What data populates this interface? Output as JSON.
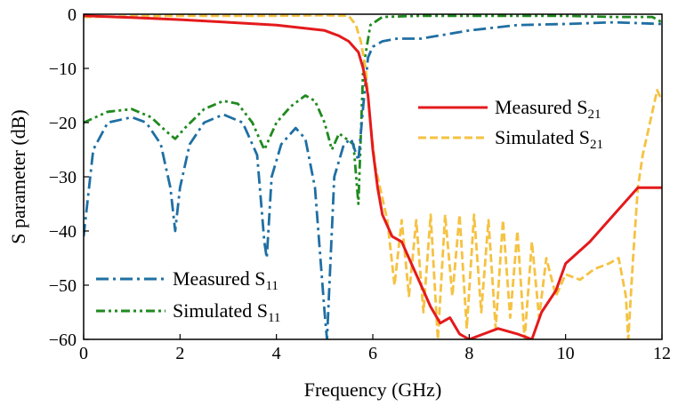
{
  "chart_data": {
    "type": "line",
    "xlabel": "Frequency (GHz)",
    "ylabel": "S parameter (dB)",
    "xlim": [
      0,
      12
    ],
    "ylim": [
      -60,
      0
    ],
    "xticks": [
      "0",
      "2",
      "4",
      "6",
      "8",
      "10",
      "12"
    ],
    "yticks": [
      "0",
      "−10",
      "−20",
      "−30",
      "−40",
      "−50",
      "−60"
    ],
    "grid": false,
    "legends": [
      {
        "placement": "upper-right",
        "entries": [
          "Measured S21",
          "Simulated S21"
        ]
      },
      {
        "placement": "lower-left",
        "entries": [
          "Measured S11",
          "Simulated S11"
        ]
      }
    ],
    "series": [
      {
        "name": "Measured S21",
        "main": "Measured S",
        "sub": "21",
        "color": "#e41a1c",
        "dash": "solid",
        "x": [
          0,
          1,
          2,
          3,
          4,
          4.5,
          5,
          5.3,
          5.5,
          5.7,
          5.8,
          5.9,
          6.0,
          6.1,
          6.2,
          6.4,
          6.6,
          6.8,
          7.0,
          7.2,
          7.4,
          7.6,
          7.8,
          8.0,
          8.3,
          8.6,
          9.0,
          9.3,
          9.5,
          9.8,
          10.0,
          10.5,
          11.0,
          11.5,
          12.0
        ],
        "y": [
          -0.3,
          -0.6,
          -1.0,
          -1.5,
          -2.0,
          -2.5,
          -3.0,
          -4.0,
          -5.0,
          -7.0,
          -10.0,
          -15.0,
          -25.0,
          -32.0,
          -37.0,
          -41.0,
          -42.0,
          -46.0,
          -50.0,
          -54.0,
          -57.0,
          -56.0,
          -59.0,
          -60.0,
          -59.0,
          -58.0,
          -59.0,
          -60.0,
          -55.0,
          -51.0,
          -46.0,
          -42.0,
          -37.0,
          -32.0,
          -32.0
        ]
      },
      {
        "name": "Simulated S21",
        "main": "Simulated S",
        "sub": "21",
        "color": "#f5c242",
        "dash": "dashed",
        "x": [
          0,
          1,
          2,
          3,
          4,
          5,
          5.5,
          5.65,
          5.75,
          5.85,
          5.95,
          6.05,
          6.15,
          6.3,
          6.45,
          6.6,
          6.75,
          6.9,
          7.05,
          7.2,
          7.35,
          7.5,
          7.65,
          7.8,
          7.95,
          8.1,
          8.25,
          8.4,
          8.55,
          8.7,
          8.85,
          9.0,
          9.15,
          9.3,
          9.45,
          9.6,
          9.8,
          10.0,
          10.3,
          10.6,
          10.9,
          11.1,
          11.25,
          11.3,
          11.4,
          11.5,
          11.6,
          11.75,
          11.9,
          12.0
        ],
        "y": [
          -0.5,
          -0.4,
          -0.3,
          -0.3,
          -0.3,
          -0.2,
          -0.3,
          -2.0,
          -5.0,
          -10.0,
          -20.0,
          -28.0,
          -32.0,
          -38.0,
          -50.0,
          -38.0,
          -52.0,
          -38.0,
          -55.0,
          -37.0,
          -60.0,
          -37.0,
          -52.0,
          -37.0,
          -58.0,
          -37.0,
          -55.0,
          -38.0,
          -58.0,
          -38.0,
          -56.0,
          -40.0,
          -60.0,
          -42.0,
          -56.0,
          -45.0,
          -52.0,
          -48.0,
          -49.0,
          -47.0,
          -46.0,
          -45.0,
          -52.0,
          -60.0,
          -45.0,
          -32.0,
          -26.0,
          -20.0,
          -14.0,
          -16.0
        ]
      },
      {
        "name": "Measured S11",
        "main": "Measured S",
        "sub": "11",
        "color": "#1f6fa3",
        "dash": "dashdot",
        "x": [
          0,
          0.2,
          0.5,
          1.0,
          1.3,
          1.6,
          1.8,
          1.9,
          2.0,
          2.2,
          2.5,
          2.9,
          3.3,
          3.6,
          3.75,
          3.8,
          3.9,
          4.1,
          4.4,
          4.6,
          4.8,
          5.0,
          5.05,
          5.2,
          5.4,
          5.55,
          5.7,
          5.8,
          5.9,
          6.0,
          6.2,
          6.5,
          7.0,
          8.0,
          9.0,
          10.0,
          11.0,
          12.0
        ],
        "y": [
          -41.0,
          -25.0,
          -20.0,
          -19.0,
          -20.0,
          -24.0,
          -32.0,
          -40.0,
          -32.0,
          -24.0,
          -20.0,
          -18.5,
          -20.0,
          -26.0,
          -42.0,
          -45.0,
          -30.0,
          -24.0,
          -21.0,
          -23.0,
          -32.0,
          -55.0,
          -60.0,
          -30.0,
          -24.0,
          -23.0,
          -27.0,
          -17.0,
          -8.0,
          -6.0,
          -5.0,
          -4.5,
          -4.5,
          -3.0,
          -2.0,
          -1.8,
          -1.5,
          -1.8
        ]
      },
      {
        "name": "Simulated S11",
        "main": "Simulated S",
        "sub": "11",
        "color": "#1f8a1f",
        "dash": "dashdotdot",
        "x": [
          0,
          0.5,
          1.0,
          1.4,
          1.7,
          1.9,
          2.1,
          2.5,
          2.9,
          3.2,
          3.5,
          3.75,
          4.0,
          4.3,
          4.6,
          4.8,
          5.0,
          5.15,
          5.3,
          5.45,
          5.6,
          5.7,
          5.8,
          5.95,
          6.2,
          7.0,
          8.0,
          9.0,
          10.0,
          11.0,
          11.8,
          12.0
        ],
        "y": [
          -20.0,
          -18.0,
          -17.5,
          -19.0,
          -21.5,
          -23.0,
          -21.0,
          -17.5,
          -16.0,
          -16.5,
          -20.0,
          -25.0,
          -20.0,
          -17.0,
          -15.0,
          -16.0,
          -20.0,
          -25.0,
          -22.0,
          -23.0,
          -24.0,
          -35.0,
          -10.0,
          -2.0,
          -0.5,
          -0.3,
          -0.3,
          -0.3,
          -0.3,
          -0.5,
          -0.5,
          -1.5
        ]
      }
    ]
  }
}
